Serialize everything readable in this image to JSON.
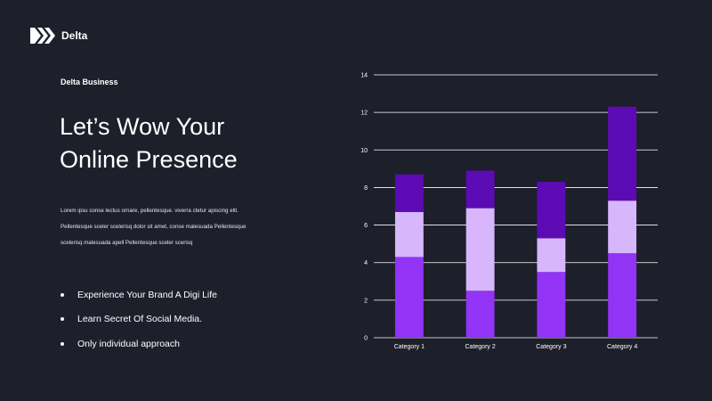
{
  "brand": {
    "logo_icon": "delta-logo-icon",
    "name": "Delta"
  },
  "eyebrow": "Delta Business",
  "headline": [
    "Let’s Wow Your",
    "Online Presence"
  ],
  "body_lines": [
    "Lorem ipsu conse lectus ornare, pellentesque. viverra ctetur apiscing elit.",
    "Pellentesque sceler scelerisq dolor sit amet, conse malesuada Pellentesque",
    "scelerisq malesuada apell Pellentesque sceler scerisq"
  ],
  "bullets": [
    "Experience Your Brand A Digi Life",
    "Learn Secret Of Social Media.",
    "Only individual approach"
  ],
  "colors": {
    "background": "#1d1f2b",
    "series_1": "#9233f6",
    "series_2": "#d7b6fb",
    "series_3": "#5c0bb4"
  },
  "chart_data": {
    "type": "bar",
    "stacked": true,
    "categories": [
      "Category 1",
      "Category 2",
      "Category 3",
      "Category 4"
    ],
    "series": [
      {
        "values": [
          4.3,
          2.5,
          3.5,
          4.5
        ],
        "color": "#9233f6"
      },
      {
        "values": [
          2.4,
          4.4,
          1.8,
          2.8
        ],
        "color": "#d7b6fb"
      },
      {
        "values": [
          2.0,
          2.0,
          3.0,
          5.0
        ],
        "color": "#5c0bb4"
      }
    ],
    "ylim": [
      0,
      14
    ],
    "yticks": [
      "0",
      "2",
      "4",
      "6",
      "8",
      "10",
      "12",
      "14"
    ],
    "grid": true,
    "legend": "none"
  }
}
